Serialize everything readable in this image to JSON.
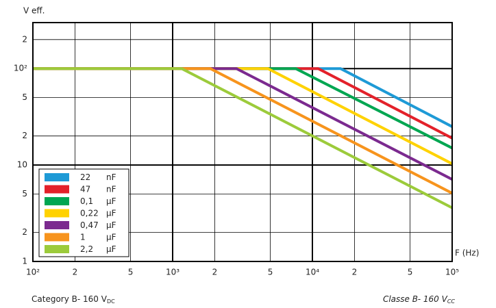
{
  "chart_data": {
    "type": "line",
    "y_label": "V eff.",
    "x_label": "F (Hz)",
    "footer_left": {
      "text": "Category B- 160 V",
      "sub": "DC"
    },
    "footer_right": {
      "text": "Classe B- 160 V",
      "sub": "CC"
    },
    "log_x": true,
    "log_y": true,
    "grid": true,
    "legend": "lower left",
    "xlim": [
      100,
      100000
    ],
    "xticks": [
      {
        "value": 100,
        "label": "10²"
      },
      {
        "value": 200,
        "label": "2"
      },
      {
        "value": 500,
        "label": "5"
      },
      {
        "value": 1000,
        "label": "10³"
      },
      {
        "value": 2000,
        "label": "2"
      },
      {
        "value": 5000,
        "label": "5"
      },
      {
        "value": 10000,
        "label": "10⁴"
      },
      {
        "value": 20000,
        "label": "2"
      },
      {
        "value": 50000,
        "label": "5"
      },
      {
        "value": 100000,
        "label": "10⁵"
      }
    ],
    "ylim": [
      1,
      300
    ],
    "yticks": [
      1,
      2,
      5,
      10,
      {
        "value": 20,
        "label": "2"
      },
      {
        "value": 50,
        "label": "5"
      },
      {
        "value": 100,
        "label": "10²"
      },
      {
        "value": 200,
        "label": "2"
      }
    ],
    "series": [
      {
        "name": "22 nF",
        "color": "#1e9ad6",
        "x": [
          100,
          15900,
          100000
        ],
        "values": [
          100,
          100,
          25
        ]
      },
      {
        "name": "47 nF",
        "color": "#e3212a",
        "x": [
          100,
          11000,
          100000
        ],
        "values": [
          100,
          100,
          19
        ]
      },
      {
        "name": "0,1 µF",
        "color": "#00a651",
        "x": [
          100,
          7600,
          100000
        ],
        "values": [
          100,
          100,
          15
        ]
      },
      {
        "name": "0,22 µF",
        "color": "#ffd200",
        "x": [
          100,
          4800,
          100000
        ],
        "values": [
          100,
          100,
          10.3
        ]
      },
      {
        "name": "0,47 µF",
        "color": "#7b2a8f",
        "x": [
          100,
          2860,
          100000
        ],
        "values": [
          100,
          100,
          7.1
        ]
      },
      {
        "name": "1 µF",
        "color": "#f7941d",
        "x": [
          100,
          1860,
          100000
        ],
        "values": [
          100,
          100,
          5.1
        ]
      },
      {
        "name": "2,2 µF",
        "color": "#9ccb3b",
        "x": [
          100,
          1160,
          100000
        ],
        "values": [
          100,
          100,
          3.6
        ]
      }
    ]
  }
}
